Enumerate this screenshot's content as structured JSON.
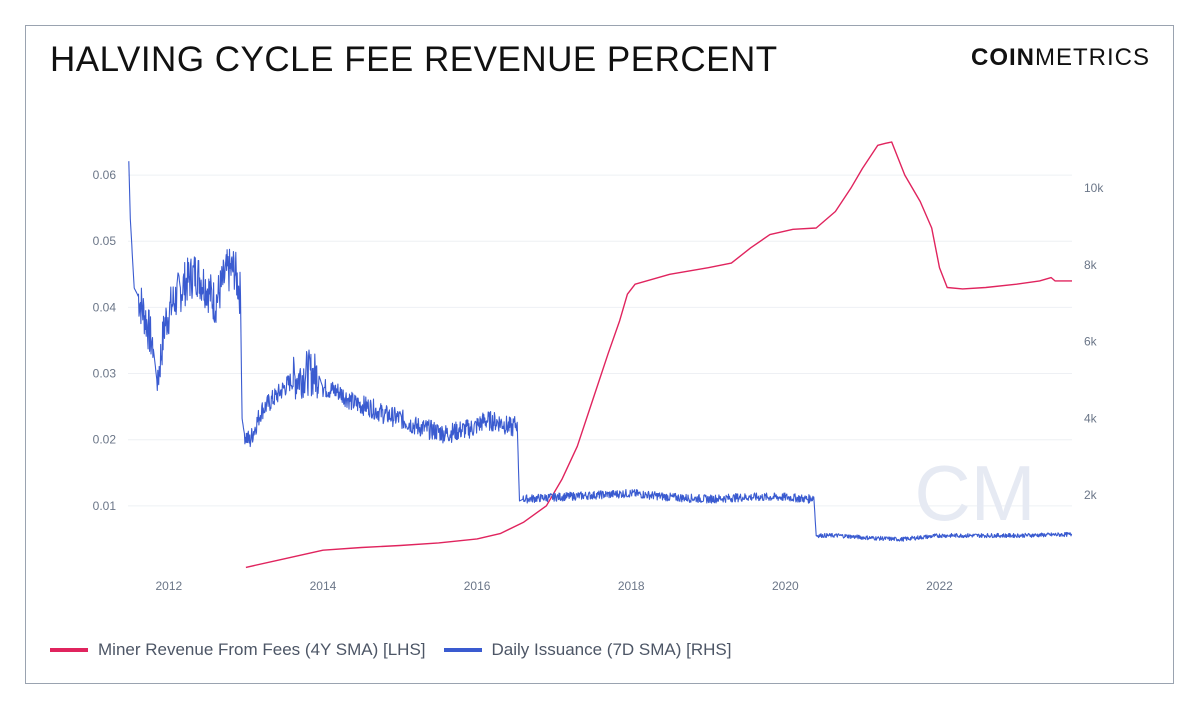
{
  "header": {
    "title": "HALVING CYCLE FEE REVENUE PERCENT",
    "brand_bold": "COIN",
    "brand_light": "METRICS"
  },
  "watermark": {
    "text": "CM"
  },
  "legend": [
    {
      "label": "Miner Revenue From Fees (4Y SMA) [LHS]",
      "color": "#e0245e"
    },
    {
      "label": "Daily Issuance (7D SMA) [RHS]",
      "color": "#3a5bd0"
    }
  ],
  "chart_data": {
    "type": "line",
    "x_axis": {
      "ticks": [
        "2012",
        "2014",
        "2016",
        "2018",
        "2020",
        "2022"
      ],
      "range": [
        2011.47,
        2023.72
      ]
    },
    "y_left": {
      "ticks": [
        "0.01",
        "0.02",
        "0.03",
        "0.04",
        "0.05",
        "0.06"
      ],
      "range": [
        0,
        0.065
      ]
    },
    "y_right": {
      "ticks": [
        "2k",
        "4k",
        "6k",
        "8k",
        "10k"
      ],
      "range": [
        0,
        11200
      ]
    },
    "grid": true,
    "legend_position": "bottom-left",
    "series": [
      {
        "name": "Miner Revenue From Fees (4Y SMA) [LHS]",
        "axis": "left",
        "color": "#e0245e",
        "points": [
          [
            2013.0,
            0.0007
          ],
          [
            2013.5,
            0.002
          ],
          [
            2014.0,
            0.0033
          ],
          [
            2014.5,
            0.0037
          ],
          [
            2015.0,
            0.004
          ],
          [
            2015.5,
            0.0044
          ],
          [
            2016.0,
            0.005
          ],
          [
            2016.3,
            0.0058
          ],
          [
            2016.6,
            0.0075
          ],
          [
            2016.9,
            0.01
          ],
          [
            2017.1,
            0.014
          ],
          [
            2017.3,
            0.019
          ],
          [
            2017.5,
            0.026
          ],
          [
            2017.7,
            0.033
          ],
          [
            2017.85,
            0.038
          ],
          [
            2017.95,
            0.042
          ],
          [
            2018.05,
            0.0435
          ],
          [
            2018.5,
            0.045
          ],
          [
            2019.0,
            0.046
          ],
          [
            2019.3,
            0.0467
          ],
          [
            2019.55,
            0.049
          ],
          [
            2019.8,
            0.051
          ],
          [
            2020.1,
            0.0518
          ],
          [
            2020.4,
            0.052
          ],
          [
            2020.5,
            0.053
          ],
          [
            2020.65,
            0.0545
          ],
          [
            2020.85,
            0.058
          ],
          [
            2021.0,
            0.061
          ],
          [
            2021.2,
            0.0645
          ],
          [
            2021.3,
            0.0648
          ],
          [
            2021.38,
            0.065
          ],
          [
            2021.55,
            0.06
          ],
          [
            2021.75,
            0.056
          ],
          [
            2021.9,
            0.052
          ],
          [
            2022.0,
            0.046
          ],
          [
            2022.1,
            0.043
          ],
          [
            2022.3,
            0.0428
          ],
          [
            2022.6,
            0.043
          ],
          [
            2023.0,
            0.0435
          ],
          [
            2023.3,
            0.044
          ],
          [
            2023.45,
            0.0445
          ],
          [
            2023.5,
            0.044
          ],
          [
            2023.72,
            0.044
          ]
        ]
      },
      {
        "name": "Daily Issuance (7D SMA) [RHS]",
        "axis": "right",
        "color": "#3a5bd0",
        "points": [
          [
            2011.48,
            10700
          ],
          [
            2011.5,
            9200
          ],
          [
            2011.55,
            7400
          ],
          [
            2011.6,
            7200
          ],
          [
            2011.7,
            6600
          ],
          [
            2011.8,
            5800
          ],
          [
            2011.85,
            4900
          ],
          [
            2011.95,
            6500
          ],
          [
            2012.05,
            7000
          ],
          [
            2012.2,
            7500
          ],
          [
            2012.35,
            7800
          ],
          [
            2012.5,
            7400
          ],
          [
            2012.6,
            7000
          ],
          [
            2012.75,
            7800
          ],
          [
            2012.85,
            7900
          ],
          [
            2012.93,
            7200
          ],
          [
            2012.95,
            4000
          ],
          [
            2012.98,
            3600
          ],
          [
            2013.05,
            3400
          ],
          [
            2013.2,
            4200
          ],
          [
            2013.4,
            4600
          ],
          [
            2013.6,
            5000
          ],
          [
            2013.8,
            5200
          ],
          [
            2013.95,
            5100
          ],
          [
            2014.0,
            4800
          ],
          [
            2014.2,
            4700
          ],
          [
            2014.4,
            4400
          ],
          [
            2014.6,
            4300
          ],
          [
            2014.8,
            4100
          ],
          [
            2015.0,
            4000
          ],
          [
            2015.2,
            3800
          ],
          [
            2015.4,
            3700
          ],
          [
            2015.6,
            3600
          ],
          [
            2015.8,
            3700
          ],
          [
            2015.95,
            3750
          ],
          [
            2016.1,
            3950
          ],
          [
            2016.3,
            3900
          ],
          [
            2016.45,
            3750
          ],
          [
            2016.52,
            3900
          ],
          [
            2016.55,
            1850
          ],
          [
            2016.6,
            1900
          ],
          [
            2017.0,
            1950
          ],
          [
            2017.5,
            2000
          ],
          [
            2018.0,
            2050
          ],
          [
            2018.5,
            1950
          ],
          [
            2019.0,
            1900
          ],
          [
            2019.5,
            1950
          ],
          [
            2020.0,
            1950
          ],
          [
            2020.3,
            1900
          ],
          [
            2020.37,
            1950
          ],
          [
            2020.4,
            950
          ],
          [
            2020.7,
            950
          ],
          [
            2021.0,
            900
          ],
          [
            2021.5,
            850
          ],
          [
            2022.0,
            950
          ],
          [
            2022.5,
            950
          ],
          [
            2023.0,
            950
          ],
          [
            2023.72,
            980
          ]
        ]
      }
    ]
  }
}
